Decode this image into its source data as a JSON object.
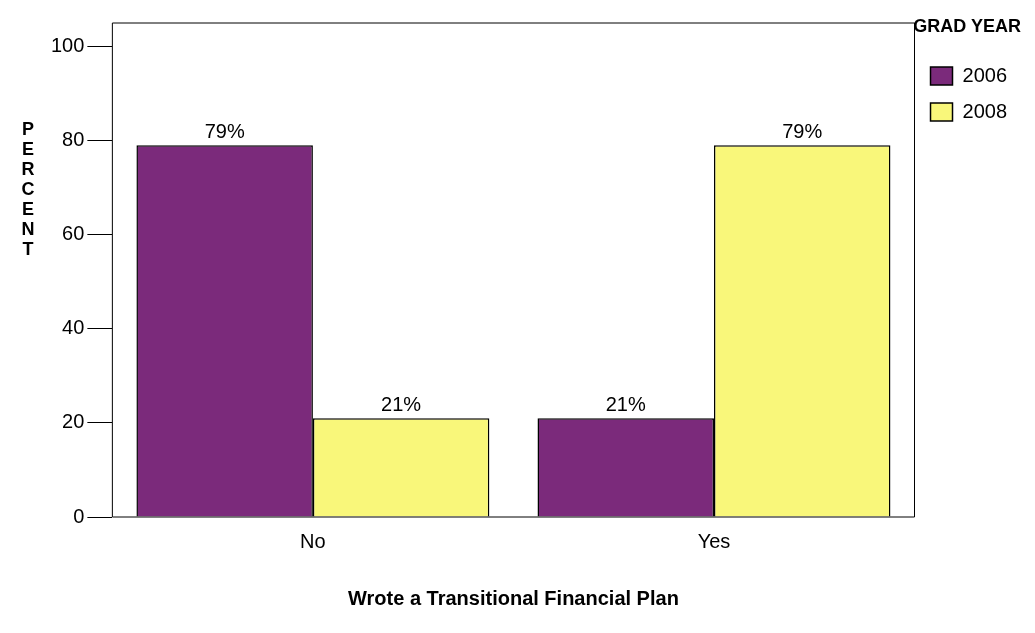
{
  "chart_data": {
    "type": "bar",
    "xlabel": "Wrote a Transitional Financial Plan",
    "ylabel": "PERCENT",
    "legend_title": "GRAD YEAR",
    "categories": [
      "No",
      "Yes"
    ],
    "series": [
      {
        "name": "2006",
        "color": "#7b2a7b",
        "values": [
          79,
          21
        ],
        "value_labels": [
          "79%",
          "21%"
        ]
      },
      {
        "name": "2008",
        "color": "#f9f77a",
        "values": [
          21,
          79
        ],
        "value_labels": [
          "21%",
          "79%"
        ]
      }
    ],
    "ylim": [
      0,
      105
    ],
    "yticks": [
      0,
      20,
      40,
      60,
      80,
      100
    ],
    "grid": false,
    "legend": "top right"
  }
}
